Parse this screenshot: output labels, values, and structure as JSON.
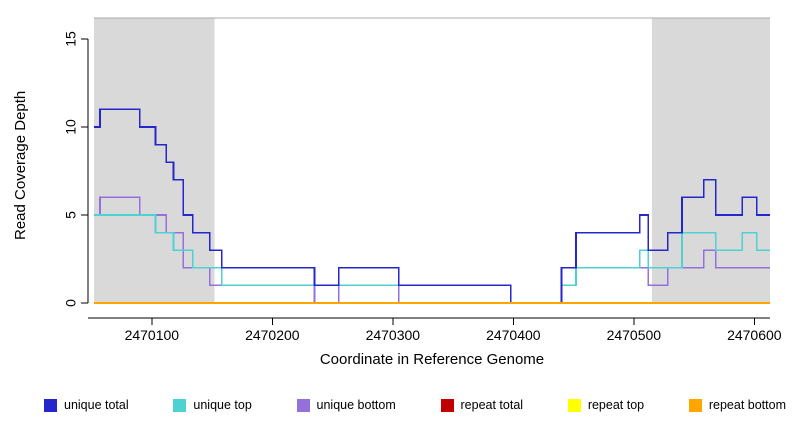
{
  "chart_data": {
    "type": "line",
    "subtype": "step",
    "title": "",
    "xlabel": "Coordinate in Reference Genome",
    "ylabel": "Read Coverage Depth",
    "x_range": [
      2470052,
      2470613
    ],
    "y_range": [
      0,
      16.2
    ],
    "x_ticks": [
      2470100,
      2470200,
      2470300,
      2470400,
      2470500,
      2470600
    ],
    "y_ticks": [
      0,
      5,
      10,
      15
    ],
    "shaded_regions": [
      {
        "from": 2470052,
        "to": 2470152
      },
      {
        "from": 2470515,
        "to": 2470613
      }
    ],
    "shade_color": "#D9D9D9",
    "top_border_color": "#ABABAB",
    "axis_color": "#000000",
    "series": [
      {
        "name": "repeat total",
        "color": "#C00000",
        "points": [
          [
            2470052,
            0
          ]
        ]
      },
      {
        "name": "repeat top",
        "color": "#FFFF00",
        "points": [
          [
            2470052,
            0
          ]
        ]
      },
      {
        "name": "unique bottom",
        "color": "#9370DB",
        "points": [
          [
            2470052,
            5
          ],
          [
            2470057,
            6
          ],
          [
            2470090,
            5
          ],
          [
            2470112,
            4
          ],
          [
            2470126,
            2
          ],
          [
            2470148,
            1
          ],
          [
            2470235,
            0
          ],
          [
            2470255,
            1
          ],
          [
            2470305,
            0
          ],
          [
            2470440,
            1
          ],
          [
            2470452,
            2
          ],
          [
            2470512,
            1
          ],
          [
            2470528,
            2
          ],
          [
            2470558,
            3
          ],
          [
            2470568,
            2
          ]
        ]
      },
      {
        "name": "unique top",
        "color": "#4DD2D2",
        "points": [
          [
            2470052,
            5
          ],
          [
            2470103,
            4
          ],
          [
            2470118,
            3
          ],
          [
            2470134,
            2
          ],
          [
            2470158,
            1
          ],
          [
            2470398,
            0
          ],
          [
            2470440,
            1
          ],
          [
            2470452,
            2
          ],
          [
            2470505,
            3
          ],
          [
            2470512,
            2
          ],
          [
            2470540,
            4
          ],
          [
            2470568,
            3
          ],
          [
            2470590,
            4
          ],
          [
            2470602,
            3
          ]
        ]
      },
      {
        "name": "unique total",
        "color": "#2626CD",
        "points": [
          [
            2470052,
            10
          ],
          [
            2470057,
            11
          ],
          [
            2470090,
            10
          ],
          [
            2470103,
            9
          ],
          [
            2470112,
            8
          ],
          [
            2470118,
            7
          ],
          [
            2470126,
            5
          ],
          [
            2470134,
            4
          ],
          [
            2470148,
            3
          ],
          [
            2470158,
            2
          ],
          [
            2470235,
            1
          ],
          [
            2470255,
            2
          ],
          [
            2470305,
            1
          ],
          [
            2470398,
            0
          ],
          [
            2470440,
            2
          ],
          [
            2470452,
            4
          ],
          [
            2470505,
            5
          ],
          [
            2470512,
            3
          ],
          [
            2470528,
            4
          ],
          [
            2470540,
            6
          ],
          [
            2470558,
            7
          ],
          [
            2470568,
            5
          ],
          [
            2470590,
            6
          ],
          [
            2470602,
            5
          ]
        ]
      },
      {
        "name": "repeat bottom",
        "color": "#FFA500",
        "points": [
          [
            2470052,
            0
          ]
        ]
      }
    ],
    "legend": [
      {
        "label": "unique total",
        "color": "#2626CD"
      },
      {
        "label": "unique top",
        "color": "#4DD2D2"
      },
      {
        "label": "unique bottom",
        "color": "#9370DB"
      },
      {
        "label": "repeat total",
        "color": "#C00000"
      },
      {
        "label": "repeat top",
        "color": "#FFFF00"
      },
      {
        "label": "repeat bottom",
        "color": "#FFA500"
      }
    ]
  }
}
